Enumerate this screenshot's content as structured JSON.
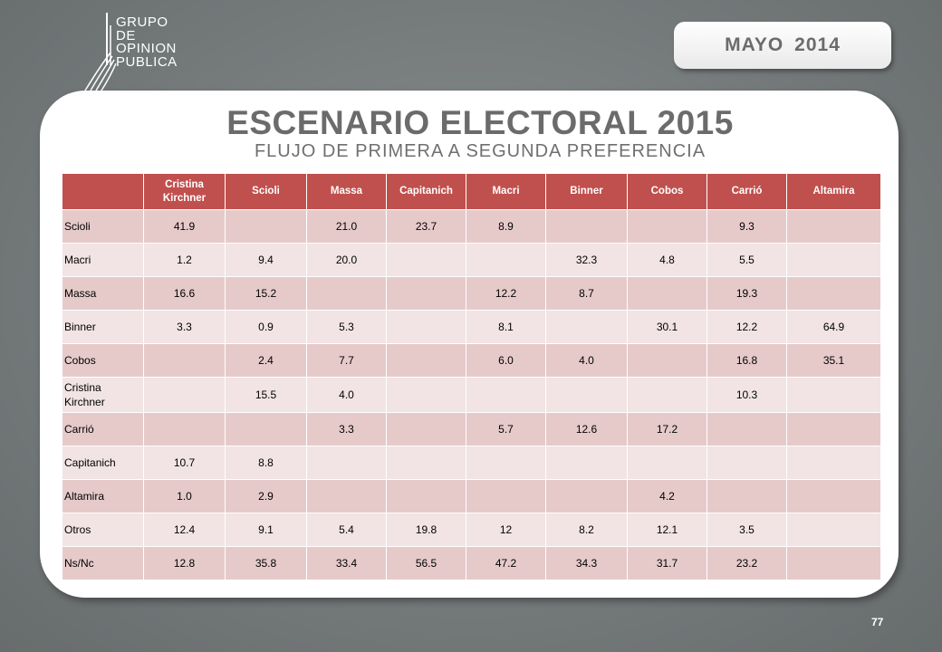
{
  "logo": {
    "lines": [
      "GRUPO",
      "DE",
      "OPINION",
      "PUBLICA"
    ]
  },
  "date": {
    "month": "MAYO",
    "year": "2014"
  },
  "title": "ESCENARIO ELECTORAL 2015",
  "subtitle": "FLUJO DE PRIMERA  A SEGUNDA  PREFERENCIA",
  "table": {
    "headers": [
      "",
      "Cristina Kirchner",
      "Scioli",
      "Massa",
      "Capitanich",
      "Macri",
      "Binner",
      "Cobos",
      "Carrió",
      "Altamira"
    ],
    "rows": [
      [
        "Scioli",
        "41.9",
        "",
        "21.0",
        "23.7",
        "8.9",
        "",
        "",
        "9.3",
        ""
      ],
      [
        "Macri",
        "1.2",
        "9.4",
        "20.0",
        "",
        "",
        "32.3",
        "4.8",
        "5.5",
        ""
      ],
      [
        "Massa",
        "16.6",
        "15.2",
        "",
        "",
        "12.2",
        "8.7",
        "",
        "19.3",
        ""
      ],
      [
        "Binner",
        "3.3",
        "0.9",
        "5.3",
        "",
        "8.1",
        "",
        "30.1",
        "12.2",
        "64.9"
      ],
      [
        "Cobos",
        "",
        "2.4",
        "7.7",
        "",
        "6.0",
        "4.0",
        "",
        "16.8",
        "35.1"
      ],
      [
        "Cristina Kirchner",
        "",
        "15.5",
        "4.0",
        "",
        "",
        "",
        "",
        "10.3",
        ""
      ],
      [
        "Carrió",
        "",
        "",
        "3.3",
        "",
        "5.7",
        "12.6",
        "17.2",
        "",
        ""
      ],
      [
        "Capitanich",
        "10.7",
        "8.8",
        "",
        "",
        "",
        "",
        "",
        "",
        ""
      ],
      [
        "Altamira",
        "1.0",
        "2.9",
        "",
        "",
        "",
        "",
        "4.2",
        "",
        ""
      ],
      [
        "Otros",
        "12.4",
        "9.1",
        "5.4",
        "19.8",
        "12",
        "8.2",
        "12.1",
        "3.5",
        ""
      ],
      [
        "Ns/Nc",
        "12.8",
        "35.8",
        "33.4",
        "56.5",
        "47.2",
        "34.3",
        "31.7",
        "23.2",
        ""
      ]
    ]
  },
  "page_number": "77"
}
